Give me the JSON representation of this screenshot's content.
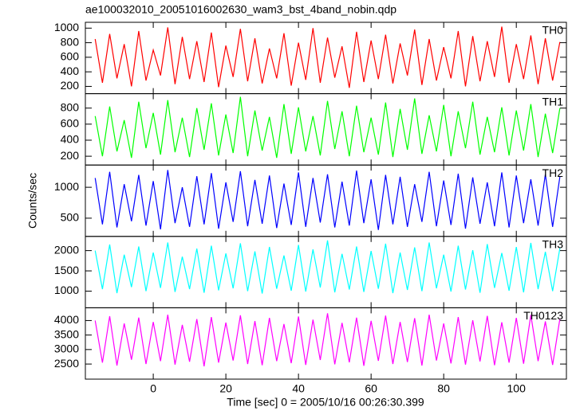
{
  "chart_data": {
    "type": "line",
    "title": "ae100032010_20051016002630_wam3_bst_4band_nobin.qdp",
    "xlabel": "Time [sec] 0 = 2005/10/16 00:26:30.399",
    "ylabel": "Counts/sec",
    "xlim": [
      -18.7,
      113.8
    ],
    "xticks": [
      0,
      20,
      40,
      60,
      80,
      100
    ],
    "x": [
      -16,
      -14,
      -12,
      -10,
      -8,
      -6,
      -4,
      -2,
      0,
      2,
      4,
      6,
      8,
      10,
      12,
      14,
      16,
      18,
      20,
      22,
      24,
      26,
      28,
      30,
      32,
      34,
      36,
      38,
      40,
      42,
      44,
      46,
      48,
      50,
      52,
      54,
      56,
      58,
      60,
      62,
      64,
      66,
      68,
      70,
      72,
      74,
      76,
      78,
      80,
      82,
      84,
      86,
      88,
      90,
      92,
      94,
      96,
      98,
      100,
      102,
      104,
      106,
      108,
      110,
      112
    ],
    "series": [
      {
        "name": "TH0",
        "color": "#ff0000",
        "ylim": [
          100,
          1080
        ],
        "yticks": [
          200,
          400,
          600,
          800,
          1000
        ],
        "values": [
          850,
          250,
          920,
          310,
          780,
          200,
          960,
          280,
          700,
          350,
          1010,
          230,
          880,
          300,
          820,
          260,
          940,
          190,
          760,
          330,
          990,
          270,
          860,
          240,
          720,
          310,
          930,
          210,
          800,
          290,
          1000,
          250,
          870,
          320,
          750,
          180,
          950,
          260,
          830,
          300,
          910,
          240,
          790,
          350,
          980,
          220,
          850,
          280,
          740,
          310,
          960,
          200,
          890,
          270,
          820,
          330,
          1020,
          250,
          780,
          300,
          900,
          230,
          860,
          280,
          810
        ]
      },
      {
        "name": "TH1",
        "color": "#00ff00",
        "ylim": [
          90,
          980
        ],
        "yticks": [
          200,
          400,
          600,
          800
        ],
        "values": [
          700,
          200,
          820,
          260,
          650,
          180,
          880,
          300,
          740,
          220,
          900,
          250,
          680,
          190,
          800,
          280,
          860,
          210,
          720,
          240,
          940,
          200,
          770,
          270,
          690,
          180,
          850,
          230,
          810,
          260,
          700,
          210,
          890,
          290,
          760,
          200,
          830,
          250,
          680,
          220,
          870,
          190,
          790,
          280,
          920,
          230,
          710,
          260,
          840,
          200,
          760,
          300,
          880,
          220,
          690,
          250,
          810,
          210,
          770,
          270,
          850,
          190,
          730,
          240,
          800
        ]
      },
      {
        "name": "TH2",
        "color": "#0000ff",
        "ylim": [
          205,
          1360
        ],
        "yticks": [
          500,
          1000
        ],
        "values": [
          1150,
          400,
          1250,
          350,
          1050,
          450,
          1200,
          380,
          1100,
          320,
          1280,
          420,
          1000,
          360,
          1180,
          400,
          1230,
          330,
          1080,
          440,
          1260,
          370,
          1120,
          410,
          1190,
          340,
          1060,
          390,
          1240,
          360,
          1150,
          430,
          1210,
          350,
          1090,
          380,
          1270,
          420,
          1130,
          310,
          1200,
          400,
          1170,
          360,
          1050,
          440,
          1250,
          370,
          1110,
          390,
          1220,
          330,
          1160,
          410,
          1080,
          370,
          1240,
          350,
          1190,
          420,
          1130,
          380,
          1210,
          360,
          1170
        ]
      },
      {
        "name": "TH3",
        "color": "#00ffff",
        "ylim": [
          590,
          2350
        ],
        "yticks": [
          1000,
          1500,
          2000
        ],
        "values": [
          2000,
          1050,
          2150,
          950,
          1900,
          1100,
          2100,
          1000,
          1950,
          1080,
          2200,
          980,
          1850,
          1050,
          2050,
          960,
          2120,
          1020,
          1930,
          1070,
          2180,
          1000,
          1980,
          940,
          2090,
          1060,
          1880,
          1010,
          2140,
          990,
          2030,
          1090,
          2250,
          970,
          1920,
          1040,
          2100,
          980,
          1990,
          1060,
          2170,
          950,
          1950,
          1030,
          2080,
          1000,
          2200,
          1070,
          1900,
          990,
          2120,
          1040,
          2010,
          960,
          2160,
          1080,
          1940,
          1010,
          2090,
          970,
          2190,
          1050,
          1970,
          1000,
          2060
        ]
      },
      {
        "name": "TH0123",
        "color": "#ff00ff",
        "ylim": [
          1980,
          4440
        ],
        "yticks": [
          2500,
          3000,
          3500,
          4000
        ],
        "values": [
          4000,
          2550,
          4150,
          2450,
          3900,
          2650,
          4100,
          2500,
          3950,
          2600,
          4200,
          2480,
          3850,
          2580,
          4050,
          2420,
          4120,
          2550,
          3930,
          2620,
          4180,
          2500,
          3980,
          2460,
          4090,
          2600,
          3880,
          2530,
          4140,
          2470,
          4030,
          2640,
          4250,
          2490,
          3920,
          2560,
          4100,
          2440,
          3990,
          2610,
          4170,
          2500,
          3950,
          2570,
          4080,
          2450,
          4200,
          2620,
          3900,
          2520,
          4120,
          2480,
          4010,
          2590,
          4160,
          2460,
          3940,
          2550,
          4090,
          2510,
          4190,
          2600,
          3970,
          2470,
          4060
        ]
      }
    ]
  }
}
